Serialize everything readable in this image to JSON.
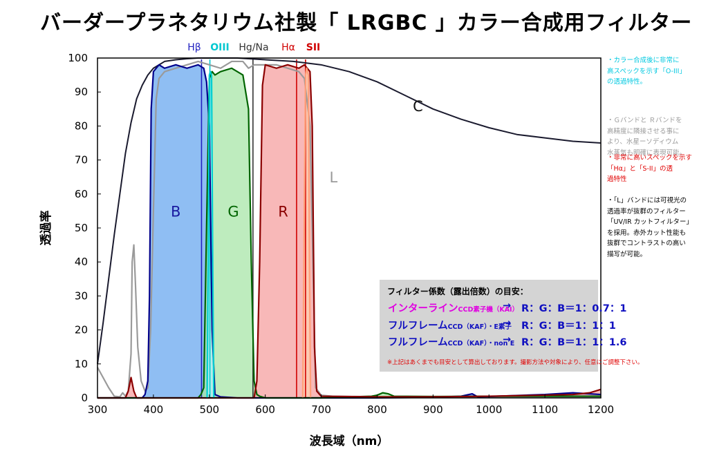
{
  "title": "バーダープラネタリウム社製「 LRGBC 」カラー合成用フィルター",
  "chart_data": {
    "type": "line",
    "xlabel": "波長域（nm）",
    "ylabel": "透過率",
    "xlim": [
      300,
      1200
    ],
    "ylim": [
      0,
      100
    ],
    "xticks": [
      300,
      400,
      500,
      600,
      700,
      800,
      900,
      1000,
      1100,
      1200
    ],
    "yticks": [
      0,
      10,
      20,
      30,
      40,
      50,
      60,
      70,
      80,
      90,
      100
    ],
    "grid": false,
    "series": [
      {
        "name": "C",
        "color": "#1a1a2e",
        "x": [
          300,
          310,
          320,
          330,
          340,
          350,
          360,
          370,
          380,
          390,
          400,
          410,
          420,
          440,
          460,
          480,
          500,
          550,
          600,
          650,
          700,
          750,
          800,
          850,
          900,
          950,
          1000,
          1050,
          1100,
          1150,
          1200
        ],
        "y": [
          10,
          22,
          35,
          48,
          60,
          72,
          81,
          88,
          92,
          95,
          97,
          98,
          99,
          99.5,
          99.8,
          100,
          100,
          100,
          99.5,
          99,
          98,
          96,
          93,
          89,
          85,
          82,
          79.5,
          77.5,
          76.5,
          75.5,
          75
        ]
      },
      {
        "name": "L",
        "color": "#9a9a9a",
        "x": [
          300,
          320,
          330,
          340,
          345,
          350,
          355,
          360,
          362,
          365,
          368,
          372,
          378,
          385,
          390,
          395,
          400,
          405,
          410,
          420,
          440,
          460,
          480,
          500,
          520,
          540,
          560,
          570,
          580,
          600,
          620,
          640,
          660,
          670,
          680,
          690,
          700,
          720,
          760,
          800,
          900,
          1000,
          1100,
          1200
        ],
        "y": [
          9,
          3,
          0.5,
          0.3,
          1.5,
          0.5,
          2,
          13,
          40,
          45,
          33,
          15,
          5,
          2,
          3,
          20,
          55,
          88,
          94,
          96,
          97,
          98,
          99,
          98,
          97,
          99,
          99,
          97,
          98,
          98,
          98,
          97,
          96,
          94,
          80,
          3,
          0.8,
          0.5,
          0.4,
          0.3,
          0.3,
          0.3,
          0.3,
          0.3
        ]
      },
      {
        "name": "B",
        "color": "#00008b",
        "fill": "#6aa8ef",
        "x": [
          300,
          380,
          385,
          390,
          393,
          396,
          400,
          410,
          420,
          440,
          460,
          480,
          490,
          495,
          500,
          505,
          510,
          520,
          550,
          700,
          800,
          900,
          950,
          970,
          980,
          1000,
          1100,
          1150,
          1200
        ],
        "y": [
          0,
          0,
          1,
          5,
          30,
          85,
          96,
          98,
          97,
          98,
          97,
          98,
          97,
          93,
          80,
          20,
          1,
          0.3,
          0,
          0,
          0,
          0.2,
          0.5,
          1.2,
          0.3,
          0.4,
          1,
          1.5,
          1
        ]
      },
      {
        "name": "G",
        "color": "#006400",
        "fill": "#a8e6a8",
        "x": [
          300,
          480,
          485,
          490,
          495,
          500,
          505,
          510,
          520,
          540,
          560,
          570,
          575,
          580,
          585,
          590,
          600,
          700,
          790,
          800,
          810,
          820,
          830,
          900,
          1000,
          1200
        ],
        "y": [
          0,
          0,
          1,
          3,
          50,
          94,
          96,
          95,
          96,
          97,
          95,
          85,
          40,
          5,
          1,
          0.5,
          0,
          0,
          0.5,
          0.8,
          1.5,
          1.2,
          0.5,
          0.4,
          0.5,
          0.5
        ]
      },
      {
        "name": "R",
        "color": "#8b0000",
        "fill": "#f5a0a0",
        "x": [
          300,
          350,
          355,
          360,
          365,
          370,
          580,
          585,
          590,
          595,
          600,
          620,
          640,
          660,
          670,
          680,
          684,
          688,
          692,
          700,
          800,
          900,
          1000,
          1100,
          1150,
          1180,
          1200
        ],
        "y": [
          0,
          0,
          2,
          6,
          2,
          0,
          0,
          5,
          40,
          92,
          98,
          97,
          98,
          97,
          98,
          96,
          80,
          15,
          2,
          0.5,
          0.3,
          0.3,
          0.5,
          0.8,
          1,
          1.5,
          2.5
        ]
      },
      {
        "name": "",
        "color": "#00ced1",
        "fill": "#b8f4f8",
        "x": [
          496,
          498,
          500,
          502,
          504,
          506,
          508
        ],
        "y": [
          0,
          40,
          95,
          96,
          95,
          40,
          0
        ]
      },
      {
        "name": "",
        "color": "#ffa07a",
        "fill": "#ffcfb0",
        "x": [
          667,
          669,
          672,
          674,
          677,
          679,
          681
        ],
        "y": [
          0,
          40,
          95,
          97,
          95,
          40,
          0
        ]
      }
    ],
    "lines": [
      {
        "label": "Hβ",
        "x": 486,
        "color": "#2020c0"
      },
      {
        "label": "OIII",
        "x": 501,
        "color": "#00c8d0"
      },
      {
        "label": "Hg/Na",
        "x": 578,
        "color": "#333333"
      },
      {
        "label": "Hα",
        "x": 656,
        "color": "#d00000"
      },
      {
        "label": "SII",
        "x": 672,
        "color": "#d00000"
      }
    ],
    "series_labels": [
      {
        "text": "B",
        "x": 440,
        "y": 55,
        "color": "#1a1aa0"
      },
      {
        "text": "G",
        "x": 543,
        "y": 55,
        "color": "#006400"
      },
      {
        "text": "R",
        "x": 632,
        "y": 55,
        "color": "#8b0000"
      },
      {
        "text": "L",
        "x": 722,
        "y": 65,
        "color": "#9a9a9a"
      },
      {
        "text": "C",
        "x": 873,
        "y": 86,
        "color": "#111111"
      }
    ]
  },
  "notes": [
    {
      "color": "#00c8e0",
      "lines": [
        "・カラー合成後に非常に",
        "高スペックを示す「O-III」",
        "の透過特性。"
      ]
    },
    {
      "color": "#9a9a9a",
      "lines": [
        "・Ｇバンドと Ｒバンドを",
        "高精度に隣接させる事に",
        "より、水星ーソディウム",
        "水蒸気も明確に表現可能。"
      ]
    },
    {
      "color": "#e00000",
      "lines": [
        "・非常に高いスペックを示す",
        "「Hα」と「S-II」の透",
        "過特性"
      ]
    },
    {
      "color": "#000000",
      "lines": [
        "・「L」バンドには可視光の",
        "透過率が抜群のフィルター",
        "「UV/IR カットフィルター」",
        "を採用。赤外カット性能も",
        "抜群でコントラストの高い",
        "描写が可能。"
      ]
    }
  ],
  "factor_box": {
    "header": "フィルター係数（露出倍数）の目安：",
    "rows": [
      {
        "name": "インターライン",
        "sub": "CCD素子機（KAI）",
        "arrow": "→",
        "ratio": "R：G：B＝1：0.7：1",
        "color": "#e000e0"
      },
      {
        "name": "フルフレーム",
        "sub": "CCD（KAF）・E素子",
        "arrow": "→",
        "ratio": "R：G：B＝1：1：1",
        "color": "#1010c0"
      },
      {
        "name": "フルフレーム",
        "sub": "CCD（KAF）・non E",
        "arrow": "→",
        "ratio": "R：G：B＝1：1：1.6",
        "color": "#1010c0"
      }
    ],
    "footnote": "※上記はあくまでも目安として算出しております。撮影方法や対象により、任意にご調整下さい。"
  }
}
